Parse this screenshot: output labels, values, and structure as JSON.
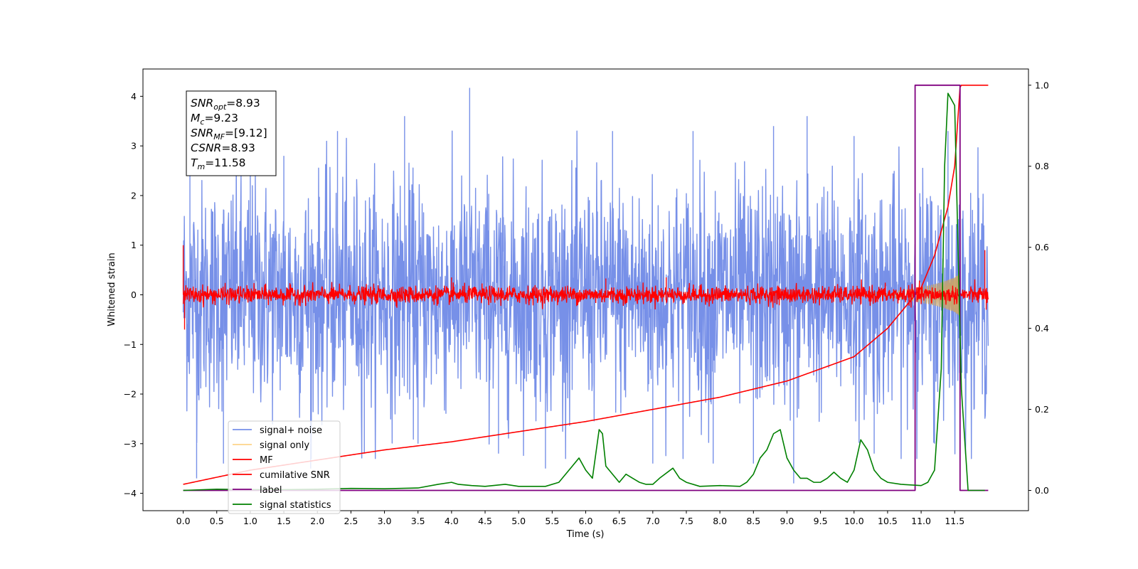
{
  "chart_data": {
    "type": "line",
    "xlabel": "Time (s)",
    "ylabel_left": "Whitened strain",
    "ylabel_right": "",
    "xlim": [
      -0.6,
      12.6
    ],
    "ylim_left": [
      -4.35,
      4.55
    ],
    "ylim_right": [
      -0.05,
      1.04
    ],
    "x_ticks": [
      "0.0",
      "0.5",
      "1.0",
      "1.5",
      "2.0",
      "2.5",
      "3.0",
      "3.5",
      "4.0",
      "4.5",
      "5.0",
      "5.5",
      "6.0",
      "6.5",
      "7.0",
      "7.5",
      "8.0",
      "8.5",
      "9.0",
      "9.5",
      "10.0",
      "10.5",
      "11.0",
      "11.5"
    ],
    "y_ticks_left": [
      "4",
      "3",
      "2",
      "1",
      "0",
      "−1",
      "−2",
      "−3",
      "−4"
    ],
    "y_ticks_right": [
      "1.0",
      "0.8",
      "0.6",
      "0.4",
      "0.2",
      "0.0"
    ],
    "annotation": {
      "lines": [
        {
          "label": "SNR",
          "sub": "opt",
          "value": "=8.93"
        },
        {
          "label": "M",
          "sub": "c",
          "value": "=9.23"
        },
        {
          "label": "SNR",
          "sub": "MF",
          "value": "=[9.12]"
        },
        {
          "label": "CSNR",
          "sub": "",
          "value": "=8.93"
        },
        {
          "label": "T",
          "sub": "m",
          "value": "=11.58"
        }
      ]
    },
    "legend": {
      "location": "lower-left",
      "entries": [
        {
          "name": "signal+ noise",
          "color": "#7790e8"
        },
        {
          "name": "signal only",
          "color": "#fdd48a"
        },
        {
          "name": "MF",
          "color": "#ff0000"
        },
        {
          "name": "cumilative SNR",
          "color": "#ff0000"
        },
        {
          "name": "label",
          "color": "#800080"
        },
        {
          "name": "signal statistics",
          "color": "#008000"
        }
      ]
    },
    "series": [
      {
        "name": "signal+ noise",
        "axis": "left",
        "style": "noise band",
        "x_range": [
          0.0,
          12.0
        ],
        "typical_range": [
          -2.5,
          2.5
        ],
        "spikes": [
          [
            0.1,
            2.4
          ],
          [
            0.2,
            -3.7
          ],
          [
            0.6,
            -3.4
          ],
          [
            1.0,
            3.4
          ],
          [
            1.5,
            2.8
          ],
          [
            1.9,
            -3.5
          ],
          [
            2.3,
            3.3
          ],
          [
            2.7,
            -3.2
          ],
          [
            3.3,
            3.6
          ],
          [
            3.5,
            -3.0
          ],
          [
            4.27,
            4.17
          ],
          [
            4.7,
            -3.2
          ],
          [
            5.4,
            -3.5
          ],
          [
            6.4,
            3.3
          ],
          [
            7.0,
            -3.4
          ],
          [
            7.6,
            3.3
          ],
          [
            7.9,
            -3.4
          ],
          [
            8.5,
            -3.4
          ],
          [
            8.8,
            3.4
          ],
          [
            9.1,
            -3.8
          ],
          [
            9.3,
            3.6
          ],
          [
            10.0,
            3.2
          ],
          [
            10.3,
            -3.2
          ],
          [
            11.2,
            -3.0
          ],
          [
            11.4,
            3.3
          ]
        ]
      },
      {
        "name": "signal only",
        "axis": "left",
        "style": "chirp envelope",
        "x": [
          10.0,
          10.5,
          11.0,
          11.3,
          11.5,
          11.58
        ],
        "amplitude": [
          0.01,
          0.05,
          0.15,
          0.25,
          0.35,
          0.45
        ]
      },
      {
        "name": "MF",
        "axis": "left",
        "style": "noise band",
        "x_range": [
          0.0,
          12.0
        ],
        "typical_range": [
          -0.2,
          0.2
        ],
        "spikes": [
          [
            0.0,
            1.0
          ],
          [
            0.02,
            -0.7
          ],
          [
            4.0,
            0.35
          ],
          [
            6.3,
            0.33
          ],
          [
            7.2,
            0.35
          ],
          [
            11.95,
            0.9
          ],
          [
            11.97,
            -0.3
          ]
        ]
      },
      {
        "name": "cumilative SNR",
        "axis": "right",
        "x": [
          0.0,
          1.0,
          2.0,
          3.0,
          4.0,
          5.0,
          6.0,
          7.0,
          8.0,
          9.0,
          9.5,
          10.0,
          10.5,
          11.0,
          11.2,
          11.4,
          11.5,
          11.58,
          11.6,
          12.0
        ],
        "values": [
          0.015,
          0.05,
          0.075,
          0.1,
          0.12,
          0.145,
          0.17,
          0.2,
          0.23,
          0.27,
          0.3,
          0.33,
          0.4,
          0.5,
          0.58,
          0.7,
          0.8,
          0.995,
          1.0,
          1.0
        ]
      },
      {
        "name": "label",
        "axis": "right",
        "x": [
          0.0,
          10.91,
          10.91,
          11.58,
          11.58,
          12.0
        ],
        "values": [
          0.0,
          0.0,
          1.0,
          1.0,
          0.0,
          0.0
        ]
      },
      {
        "name": "signal statistics",
        "axis": "right",
        "x": [
          0.0,
          0.5,
          1.0,
          1.5,
          2.0,
          2.5,
          3.0,
          3.5,
          3.8,
          4.0,
          4.1,
          4.3,
          4.5,
          4.8,
          5.0,
          5.2,
          5.4,
          5.6,
          5.8,
          5.9,
          6.0,
          6.1,
          6.2,
          6.25,
          6.3,
          6.4,
          6.5,
          6.6,
          6.7,
          6.8,
          6.9,
          7.0,
          7.1,
          7.3,
          7.4,
          7.5,
          7.7,
          8.0,
          8.3,
          8.4,
          8.5,
          8.6,
          8.7,
          8.8,
          8.9,
          9.0,
          9.1,
          9.2,
          9.3,
          9.4,
          9.5,
          9.6,
          9.7,
          9.8,
          9.9,
          10.0,
          10.1,
          10.2,
          10.3,
          10.4,
          10.5,
          10.7,
          11.0,
          11.1,
          11.2,
          11.3,
          11.35,
          11.4,
          11.5,
          11.6,
          11.7,
          11.8,
          11.95
        ],
        "values": [
          0.0,
          0.003,
          0.002,
          0.002,
          0.003,
          0.005,
          0.004,
          0.006,
          0.015,
          0.02,
          0.015,
          0.012,
          0.01,
          0.015,
          0.01,
          0.01,
          0.01,
          0.02,
          0.06,
          0.08,
          0.05,
          0.03,
          0.15,
          0.14,
          0.06,
          0.04,
          0.02,
          0.04,
          0.03,
          0.02,
          0.015,
          0.015,
          0.03,
          0.055,
          0.03,
          0.02,
          0.01,
          0.012,
          0.01,
          0.02,
          0.04,
          0.08,
          0.1,
          0.14,
          0.15,
          0.08,
          0.05,
          0.03,
          0.03,
          0.02,
          0.02,
          0.03,
          0.045,
          0.03,
          0.02,
          0.05,
          0.125,
          0.1,
          0.05,
          0.03,
          0.02,
          0.015,
          0.012,
          0.02,
          0.05,
          0.3,
          0.8,
          0.98,
          0.95,
          0.25,
          0.0,
          0.0,
          0.0
        ]
      }
    ]
  }
}
